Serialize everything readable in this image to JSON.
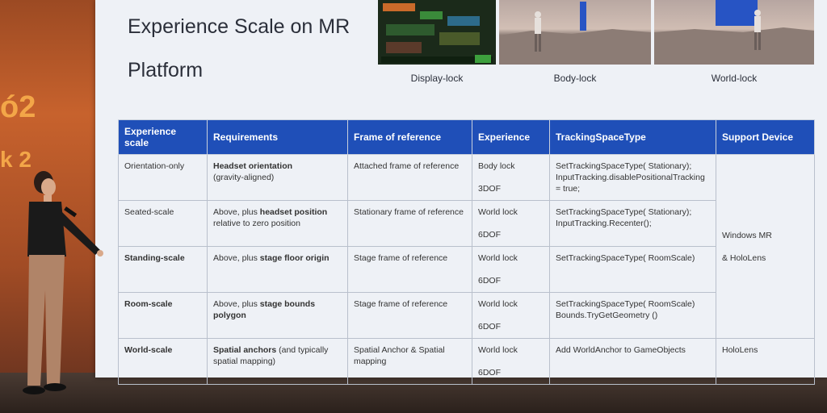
{
  "banner": {
    "text_a": "ó2",
    "text_b": "k 2"
  },
  "slide": {
    "title": "Experience Scale on MR Platform",
    "thumbnails": [
      {
        "caption": "Display-lock"
      },
      {
        "caption": "Body-lock"
      },
      {
        "caption": "World-lock"
      }
    ],
    "headers": [
      "Experience scale",
      "Requirements",
      "Frame of reference",
      "Experience",
      "TrackingSpaceType",
      "Support Device"
    ],
    "rows": [
      {
        "scale": "Orientation-only",
        "req_bold": "Headset orientation",
        "req_rest": "(gravity-aligned)",
        "frame": "Attached frame of reference",
        "exp_lock": "Body lock",
        "exp_dof": "3DOF",
        "tracking": "SetTrackingSpaceType( Stationary); InputTracking.disablePositionalTracking = true;"
      },
      {
        "scale": "Seated-scale",
        "req_pre": "Above, plus ",
        "req_bold": "headset position",
        "req_rest": " relative to zero position",
        "frame": "Stationary frame of reference",
        "exp_lock": "World lock",
        "exp_dof": "6DOF",
        "tracking": "SetTrackingSpaceType( Stationary); InputTracking.Recenter();"
      },
      {
        "scale": "Standing-scale",
        "req_pre": "Above, plus ",
        "req_bold": "stage floor origin",
        "frame": "Stage frame of reference",
        "exp_lock": "World lock",
        "exp_dof": "6DOF",
        "tracking": "SetTrackingSpaceType( RoomScale)"
      },
      {
        "scale": "Room-scale",
        "req_pre": "Above, plus ",
        "req_bold": "stage bounds polygon",
        "frame": "Stage frame of reference",
        "exp_lock": "World lock",
        "exp_dof": "6DOF",
        "tracking": "SetTrackingSpaceType( RoomScale) Bounds.TryGetGeometry ()"
      },
      {
        "scale": "World-scale",
        "req_bold": "Spatial anchors",
        "req_rest": " (and typically spatial mapping)",
        "frame": "Spatial Anchor & Spatial mapping",
        "exp_lock": "World lock",
        "exp_dof": "6DOF",
        "tracking": "Add WorldAnchor to GameObjects"
      }
    ],
    "support_device": {
      "line1": "Windows MR",
      "line2": "& HoloLens",
      "world": "HoloLens"
    }
  },
  "colors": {
    "header_blue": "#1f4fb8",
    "banner_orange": "#f3a648"
  }
}
